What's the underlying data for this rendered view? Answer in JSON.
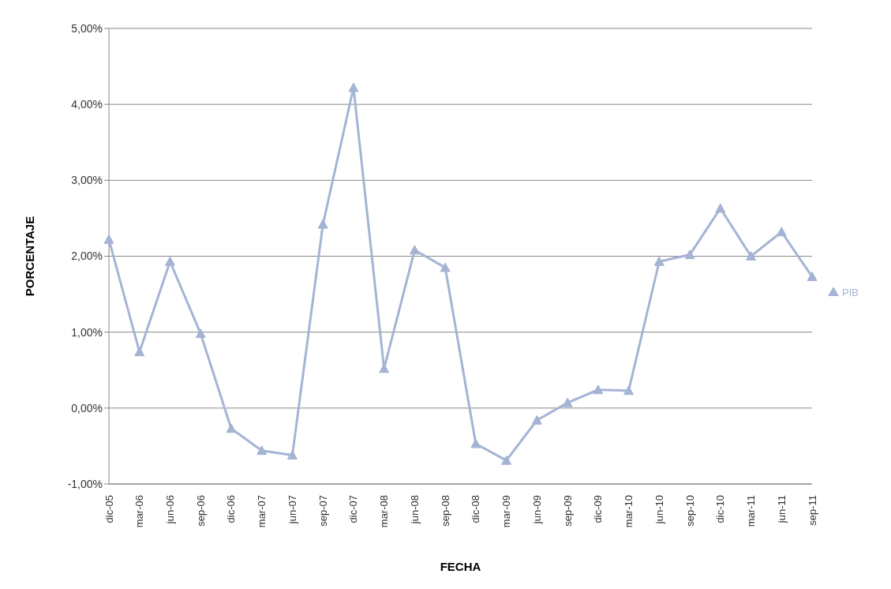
{
  "chart_data": {
    "type": "line",
    "xlabel": "FECHA",
    "ylabel": "PORCENTAJE",
    "categories": [
      "dic-05",
      "mar-06",
      "jun-06",
      "sep-06",
      "dic-06",
      "mar-07",
      "jun-07",
      "sep-07",
      "dic-07",
      "mar-08",
      "jun-08",
      "sep-08",
      "dic-08",
      "mar-09",
      "jun-09",
      "sep-09",
      "dic-09",
      "mar-10",
      "jun-10",
      "sep-10",
      "dic-10",
      "mar-11",
      "jun-11",
      "sep-11"
    ],
    "series": [
      {
        "name": "PIB",
        "color": "#a5b4d4",
        "values": [
          2.22,
          0.74,
          1.93,
          0.98,
          -0.27,
          -0.56,
          -0.62,
          2.42,
          4.22,
          0.52,
          2.08,
          1.85,
          -0.47,
          -0.69,
          -0.16,
          0.07,
          0.24,
          0.23,
          1.93,
          2.02,
          2.63,
          2.0,
          2.32,
          1.73
        ]
      }
    ],
    "ylim": [
      -1,
      5
    ],
    "yticks": [
      {
        "value": -1,
        "label": "-1,00%"
      },
      {
        "value": 0,
        "label": "0,00%"
      },
      {
        "value": 1,
        "label": "1,00%"
      },
      {
        "value": 2,
        "label": "2,00%"
      },
      {
        "value": 3,
        "label": "3,00%"
      },
      {
        "value": 4,
        "label": "4,00%"
      },
      {
        "value": 5,
        "label": "5,00%"
      }
    ],
    "grid": "y",
    "legend": "right",
    "marker": "triangle",
    "line_style": "solid"
  }
}
